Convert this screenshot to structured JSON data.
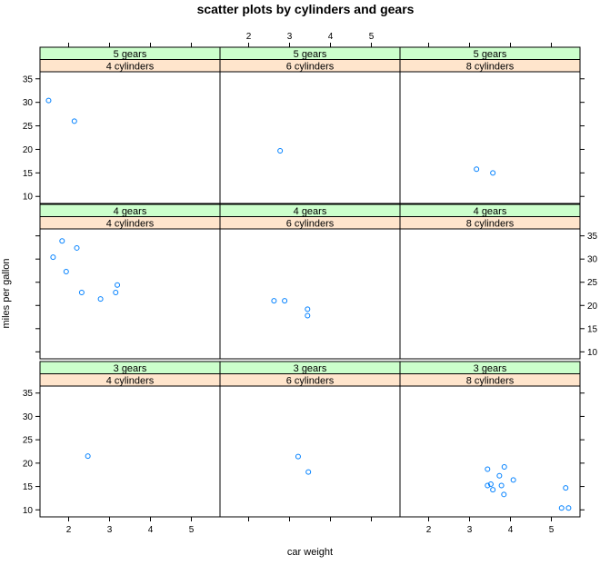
{
  "chart_data": {
    "type": "scatter",
    "title": "scatter plots by cylinders and gears",
    "xlabel": "car weight",
    "ylabel": "miles per gallon",
    "xlim": [
      1.3,
      5.7
    ],
    "ylim": [
      8.5,
      36.5
    ],
    "x_ticks": [
      2,
      3,
      4,
      5
    ],
    "y_ticks": [
      10,
      15,
      20,
      25,
      30,
      35
    ],
    "strip_colors": {
      "gears": "#ccffcc",
      "cylinders": "#ffe5cc"
    },
    "point_color": "#0080ff",
    "panels": [
      {
        "gears_label": "5 gears",
        "cyl_label": "4 cylinders",
        "points": [
          [
            1.51,
            30.4
          ],
          [
            2.14,
            26.0
          ]
        ]
      },
      {
        "gears_label": "5 gears",
        "cyl_label": "6 cylinders",
        "points": [
          [
            2.77,
            19.7
          ]
        ]
      },
      {
        "gears_label": "5 gears",
        "cyl_label": "8 cylinders",
        "points": [
          [
            3.17,
            15.8
          ],
          [
            3.57,
            15.0
          ]
        ]
      },
      {
        "gears_label": "4 gears",
        "cyl_label": "4 cylinders",
        "points": [
          [
            1.84,
            33.9
          ],
          [
            1.62,
            30.4
          ],
          [
            2.2,
            32.4
          ],
          [
            1.94,
            27.3
          ],
          [
            2.32,
            22.8
          ],
          [
            2.78,
            21.4
          ],
          [
            3.19,
            24.4
          ],
          [
            3.15,
            22.8
          ]
        ]
      },
      {
        "gears_label": "4 gears",
        "cyl_label": "6 cylinders",
        "points": [
          [
            2.62,
            21.0
          ],
          [
            2.88,
            21.0
          ],
          [
            3.44,
            19.2
          ],
          [
            3.44,
            17.8
          ]
        ]
      },
      {
        "gears_label": "4 gears",
        "cyl_label": "8 cylinders",
        "points": []
      },
      {
        "gears_label": "3 gears",
        "cyl_label": "4 cylinders",
        "points": [
          [
            2.47,
            21.5
          ]
        ]
      },
      {
        "gears_label": "3 gears",
        "cyl_label": "6 cylinders",
        "points": [
          [
            3.21,
            21.4
          ],
          [
            3.46,
            18.1
          ]
        ]
      },
      {
        "gears_label": "3 gears",
        "cyl_label": "8 cylinders",
        "points": [
          [
            3.44,
            18.7
          ],
          [
            3.57,
            14.3
          ],
          [
            4.07,
            16.4
          ],
          [
            3.73,
            17.3
          ],
          [
            3.78,
            15.2
          ],
          [
            5.25,
            10.4
          ],
          [
            5.42,
            10.4
          ],
          [
            5.35,
            14.7
          ],
          [
            3.52,
            15.5
          ],
          [
            3.44,
            15.2
          ],
          [
            3.84,
            13.3
          ],
          [
            3.85,
            19.2
          ]
        ]
      }
    ]
  }
}
